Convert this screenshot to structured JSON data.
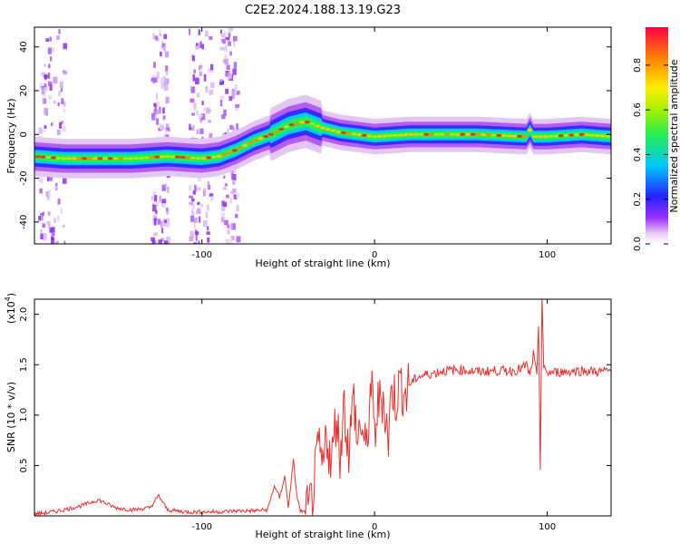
{
  "title": "C2E2.2024.188.13.19.G23",
  "chart_data": [
    {
      "type": "heatmap",
      "xlabel": "Height of straight line (km)",
      "ylabel": "Frequency (Hz)",
      "xlim": [
        -197,
        137
      ],
      "ylim": [
        -50,
        49
      ],
      "xticks": [
        -100,
        0,
        100
      ],
      "yticks": [
        -40,
        -20,
        0,
        20,
        40
      ],
      "colorbar": {
        "label": "Normalized spectral amplitude",
        "range": [
          0.0,
          0.97
        ],
        "ticks": [
          0.0,
          0.2,
          0.4,
          0.6,
          0.8
        ],
        "colormap": "rainbow (white-violet-blue-cyan-green-yellow-red)"
      },
      "ridge": {
        "x": [
          -197,
          -180,
          -160,
          -140,
          -120,
          -100,
          -90,
          -80,
          -70,
          -60,
          -50,
          -40,
          -30,
          -20,
          -10,
          0,
          20,
          60,
          88,
          90,
          92,
          100,
          120,
          137
        ],
        "frequency": [
          -10,
          -11,
          -11,
          -11,
          -10,
          -11,
          -10,
          -7,
          -3,
          0,
          4,
          6,
          3,
          1,
          0,
          -1,
          0,
          0,
          -1,
          2,
          -1,
          -1,
          0,
          -1
        ]
      },
      "grid": false
    },
    {
      "type": "line",
      "xlabel": "Height of straight line (km)",
      "ylabel": "SNR (10 * v/v)",
      "y_multiplier": "(x10",
      "y_multiplier_exp": "4",
      "xlim": [
        -197,
        137
      ],
      "ylim": [
        0,
        2.15
      ],
      "xticks": [
        -100,
        0,
        100
      ],
      "yticks": [
        0.5,
        1.0,
        1.5,
        2.0
      ],
      "series": [
        {
          "color": "#e8312f",
          "x": [
            -197,
            -190,
            -180,
            -170,
            -160,
            -150,
            -140,
            -130,
            -125,
            -120,
            -110,
            -100,
            -90,
            -80,
            -70,
            -62,
            -58,
            -55,
            -52,
            -50,
            -47,
            -45,
            -43,
            -40,
            -38,
            -35,
            -32,
            -30,
            -28,
            -25,
            -22,
            -20,
            -18,
            -15,
            -12,
            -10,
            -8,
            -5,
            -2,
            0,
            2,
            5,
            8,
            10,
            12,
            15,
            18,
            20,
            25,
            30,
            35,
            40,
            50,
            60,
            70,
            80,
            85,
            88,
            90,
            92,
            94,
            95,
            96,
            97,
            98,
            100,
            110,
            120,
            130,
            137
          ],
          "y": [
            0.02,
            0.03,
            0.06,
            0.1,
            0.16,
            0.08,
            0.06,
            0.08,
            0.2,
            0.06,
            0.04,
            0.04,
            0.04,
            0.05,
            0.05,
            0.06,
            0.3,
            0.18,
            0.4,
            0.08,
            0.55,
            0.2,
            0.05,
            0.03,
            0.04,
            0.3,
            0.7,
            0.4,
            0.85,
            0.5,
            1.05,
            0.55,
            1.15,
            0.65,
            1.2,
            0.7,
            0.95,
            0.6,
            1.3,
            0.8,
            1.1,
            1.2,
            0.75,
            1.3,
            1.15,
            1.32,
            1.2,
            1.3,
            1.38,
            1.4,
            1.42,
            1.44,
            1.45,
            1.43,
            1.44,
            1.44,
            1.46,
            1.5,
            1.38,
            1.6,
            1.38,
            1.9,
            0.5,
            2.2,
            1.45,
            1.42,
            1.43,
            1.44,
            1.43,
            1.44
          ]
        }
      ],
      "grid": false
    }
  ]
}
